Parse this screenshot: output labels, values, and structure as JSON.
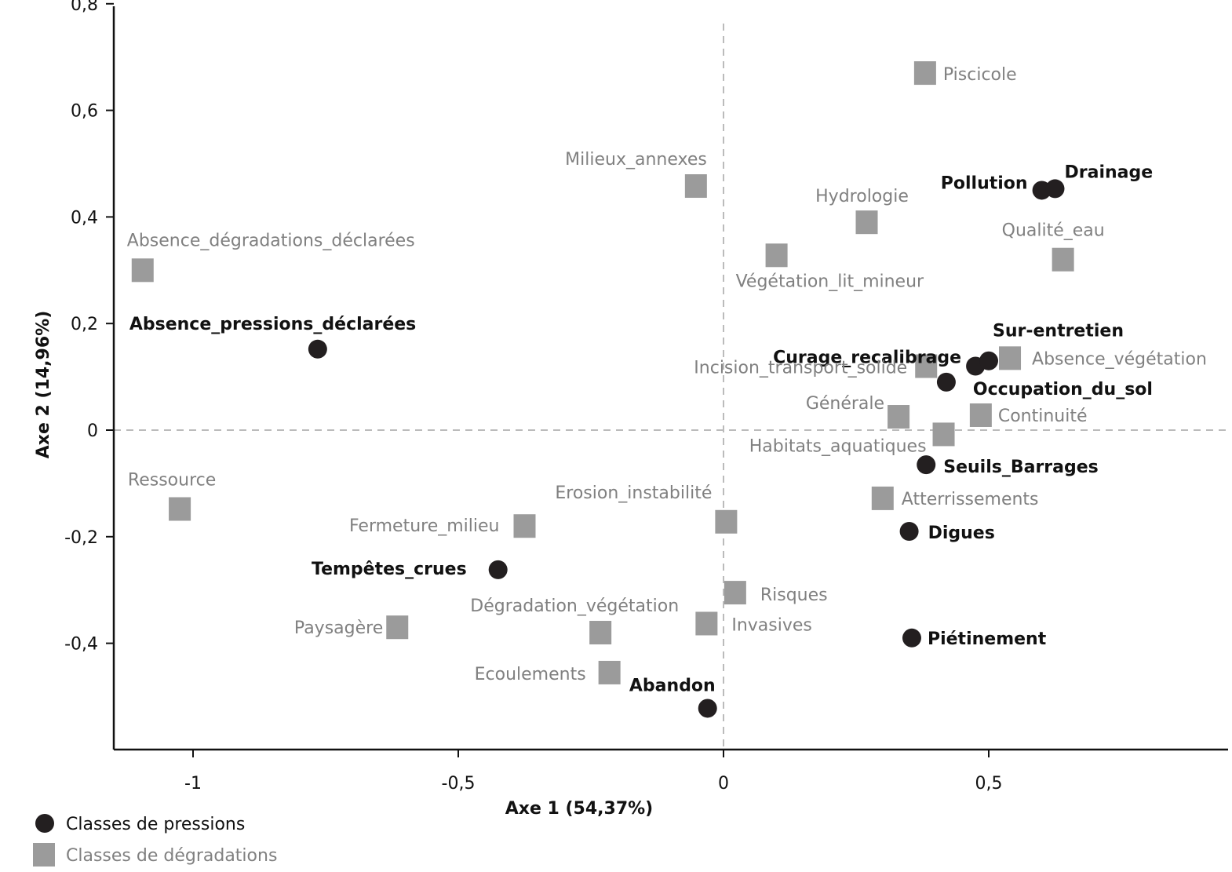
{
  "chart_data": {
    "type": "scatter",
    "xlabel": "Axe 1 (54,37%)",
    "ylabel": "Axe 2 (14,96%)",
    "xlim": [
      -1.15,
      0.95
    ],
    "ylim": [
      -0.6,
      0.8
    ],
    "x_ticks": [
      -1,
      -0.5,
      0,
      0.5
    ],
    "x_tick_labels": [
      "-1",
      "-0,5",
      "0",
      "0,5"
    ],
    "y_ticks": [
      -0.4,
      -0.2,
      0,
      0.2,
      0.4,
      0.6,
      0.8
    ],
    "y_tick_labels": [
      "-0,4",
      "-0,2",
      "0",
      "0,2",
      "0,4",
      "0,6",
      "0,8"
    ],
    "reference_lines": {
      "x": 0,
      "y": 0
    },
    "grid": false,
    "legend_position": "bottom-left",
    "colors": {
      "pressions": "#231f20",
      "degradations": "#9b9b9b",
      "degradation_labels": "#808080",
      "reference_lines": "#bbbbbb"
    },
    "series": [
      {
        "name": "Classes de pressions",
        "marker": "circle",
        "points": [
          {
            "label": "Absence_pressions_déclarées",
            "x": -0.765,
            "y": 0.152
          },
          {
            "label": "Pollution",
            "x": 0.6,
            "y": 0.45
          },
          {
            "label": "Drainage",
            "x": 0.625,
            "y": 0.453
          },
          {
            "label": "Curage_recalibrage",
            "x": 0.475,
            "y": 0.12
          },
          {
            "label": "Sur-entretien",
            "x": 0.5,
            "y": 0.13
          },
          {
            "label": "Occupation_du_sol",
            "x": 0.42,
            "y": 0.09
          },
          {
            "label": "Seuils_Barrages",
            "x": 0.382,
            "y": -0.065
          },
          {
            "label": "Digues",
            "x": 0.35,
            "y": -0.19
          },
          {
            "label": "Piétinement",
            "x": 0.355,
            "y": -0.39
          },
          {
            "label": "Tempêtes_crues",
            "x": -0.425,
            "y": -0.262
          },
          {
            "label": "Abandon",
            "x": -0.03,
            "y": -0.522
          }
        ]
      },
      {
        "name": "Classes de dégradations",
        "marker": "square",
        "points": [
          {
            "label": "Absence_dégradations_déclarées",
            "x": -1.095,
            "y": 0.3
          },
          {
            "label": "Milieux_annexes",
            "x": -0.052,
            "y": 0.458
          },
          {
            "label": "Hydrologie",
            "x": 0.27,
            "y": 0.39
          },
          {
            "label": "Végétation_lit_mineur",
            "x": 0.1,
            "y": 0.328
          },
          {
            "label": "Piscicole",
            "x": 0.38,
            "y": 0.67
          },
          {
            "label": "Qualité_eau",
            "x": 0.64,
            "y": 0.32
          },
          {
            "label": "Incision_transport_solide",
            "x": 0.382,
            "y": 0.12
          },
          {
            "label": "Absence_végétation",
            "x": 0.54,
            "y": 0.135
          },
          {
            "label": "Générale",
            "x": 0.33,
            "y": 0.025
          },
          {
            "label": "Continuité",
            "x": 0.485,
            "y": 0.028
          },
          {
            "label": "Habitats_aquatiques",
            "x": 0.415,
            "y": -0.008
          },
          {
            "label": "Atterrissements",
            "x": 0.3,
            "y": -0.128
          },
          {
            "label": "Ressource",
            "x": -1.025,
            "y": -0.148
          },
          {
            "label": "Fermeture_milieu",
            "x": -0.375,
            "y": -0.18
          },
          {
            "label": "Erosion_instabilité",
            "x": 0.005,
            "y": -0.172
          },
          {
            "label": "Risques",
            "x": 0.022,
            "y": -0.305
          },
          {
            "label": "Invasives",
            "x": -0.032,
            "y": -0.363
          },
          {
            "label": "Paysagère",
            "x": -0.615,
            "y": -0.37
          },
          {
            "label": "Dégradation_végétation",
            "x": -0.232,
            "y": -0.38
          },
          {
            "label": "Ecoulements",
            "x": -0.215,
            "y": -0.455
          }
        ]
      }
    ]
  }
}
